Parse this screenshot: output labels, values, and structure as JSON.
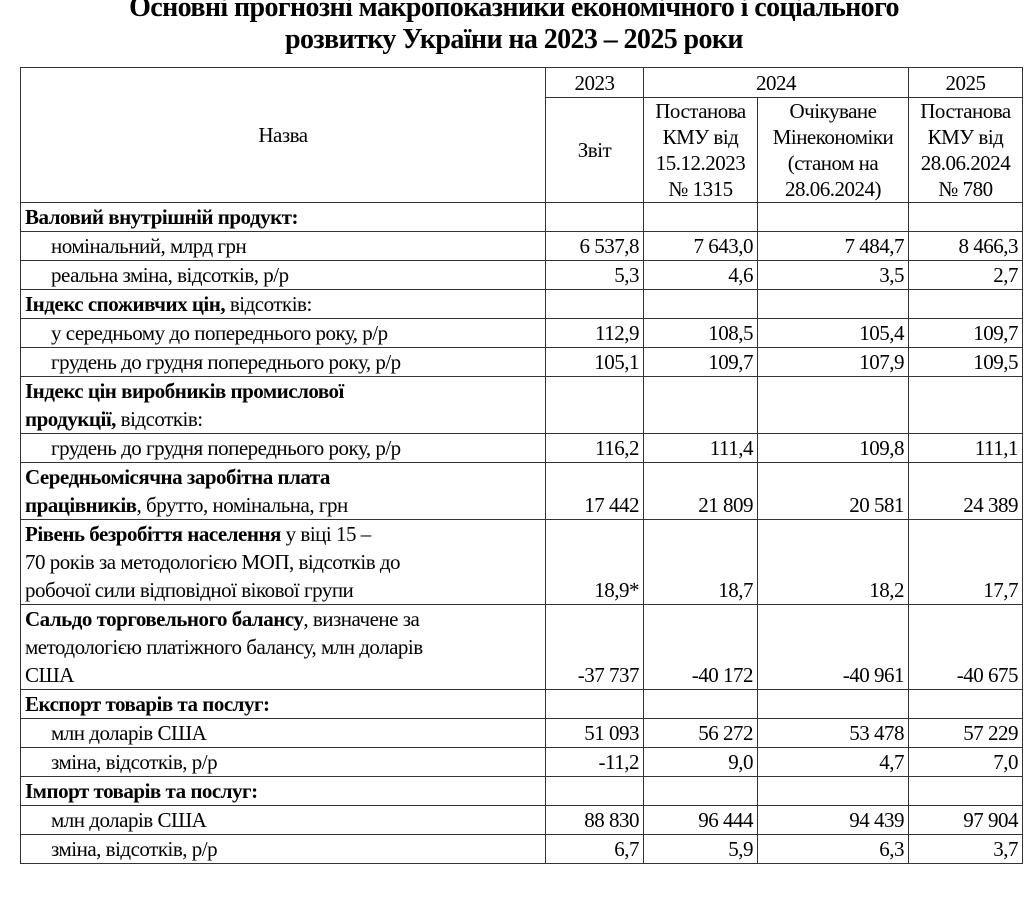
{
  "title": "Основні прогнозні макропоказники економічного і соціального\nрозвитку України на 2023 – 2025 роки",
  "header": {
    "name": "Назва",
    "years": [
      "2023",
      "2024",
      "2025"
    ],
    "sub": [
      "Звіт",
      "Постанова КМУ від 15.12.2023 № 1315",
      "Очікуване Мінекономіки (станом на 28.06.2024)",
      "Постанова КМУ від 28.06.2024 № 780"
    ]
  },
  "rows": [
    {
      "bold": "Валовий внутрішній продукт:",
      "rest": "",
      "indent": false,
      "values": [
        "",
        "",
        "",
        ""
      ]
    },
    {
      "bold": "",
      "rest": "номінальний, млрд грн",
      "indent": true,
      "values": [
        "6 537,8",
        "7 643,0",
        "7 484,7",
        "8 466,3"
      ]
    },
    {
      "bold": "",
      "rest": "реальна зміна, відсотків, р/р",
      "indent": true,
      "values": [
        "5,3",
        "4,6",
        "3,5",
        "2,7"
      ]
    },
    {
      "bold": "Індекс споживчих цін,",
      "rest": " відсотків:",
      "indent": false,
      "values": [
        "",
        "",
        "",
        ""
      ]
    },
    {
      "bold": "",
      "rest": "у середньому до попереднього року, р/р",
      "indent": true,
      "values": [
        "112,9",
        "108,5",
        "105,4",
        "109,7"
      ]
    },
    {
      "bold": "",
      "rest": "грудень до грудня попереднього року, р/р",
      "indent": true,
      "values": [
        "105,1",
        "109,7",
        "107,9",
        "109,5"
      ]
    },
    {
      "bold": "Індекс цін виробників промислової\nпродукції,",
      "rest": " відсотків:",
      "indent": false,
      "values": [
        "",
        "",
        "",
        ""
      ]
    },
    {
      "bold": "",
      "rest": "грудень до грудня попереднього року, р/р",
      "indent": true,
      "values": [
        "116,2",
        "111,4",
        "109,8",
        "111,1"
      ]
    },
    {
      "bold": "Середньомісячна заробітна плата\nпрацівників",
      "rest": ", брутто, номінальна, грн",
      "indent": false,
      "values": [
        "17 442",
        "21 809",
        "20 581",
        "24 389"
      ]
    },
    {
      "bold": "Рівень безробіття населення",
      "rest": " у віці 15 –\n70 років за методологією МОП, відсотків до\nробочої сили відповідної вікової групи",
      "indent": false,
      "values": [
        "18,9*",
        "18,7",
        "18,2",
        "17,7"
      ]
    },
    {
      "bold": "Сальдо торговельного балансу",
      "rest": ", визначене за\nметодологією платіжного балансу, млн доларів\nСША",
      "indent": false,
      "values": [
        "-37 737",
        "-40 172",
        "-40 961",
        "-40 675"
      ]
    },
    {
      "bold": "Експорт товарів та послуг:",
      "rest": "",
      "indent": false,
      "values": [
        "",
        "",
        "",
        ""
      ]
    },
    {
      "bold": "",
      "rest": "млн доларів США",
      "indent": true,
      "values": [
        "51 093",
        "56 272",
        "53 478",
        "57 229"
      ]
    },
    {
      "bold": "",
      "rest": "зміна, відсотків, р/р",
      "indent": true,
      "values": [
        "-11,2",
        "9,0",
        "4,7",
        "7,0"
      ]
    },
    {
      "bold": "Імпорт товарів та послуг:",
      "rest": "",
      "indent": false,
      "values": [
        "",
        "",
        "",
        ""
      ]
    },
    {
      "bold": "",
      "rest": "млн доларів США",
      "indent": true,
      "values": [
        "88 830",
        "96 444",
        "94 439",
        "97 904"
      ]
    },
    {
      "bold": "",
      "rest": "зміна, відсотків, р/р",
      "indent": true,
      "values": [
        "6,7",
        "5,9",
        "6,3",
        "3,7"
      ]
    }
  ]
}
